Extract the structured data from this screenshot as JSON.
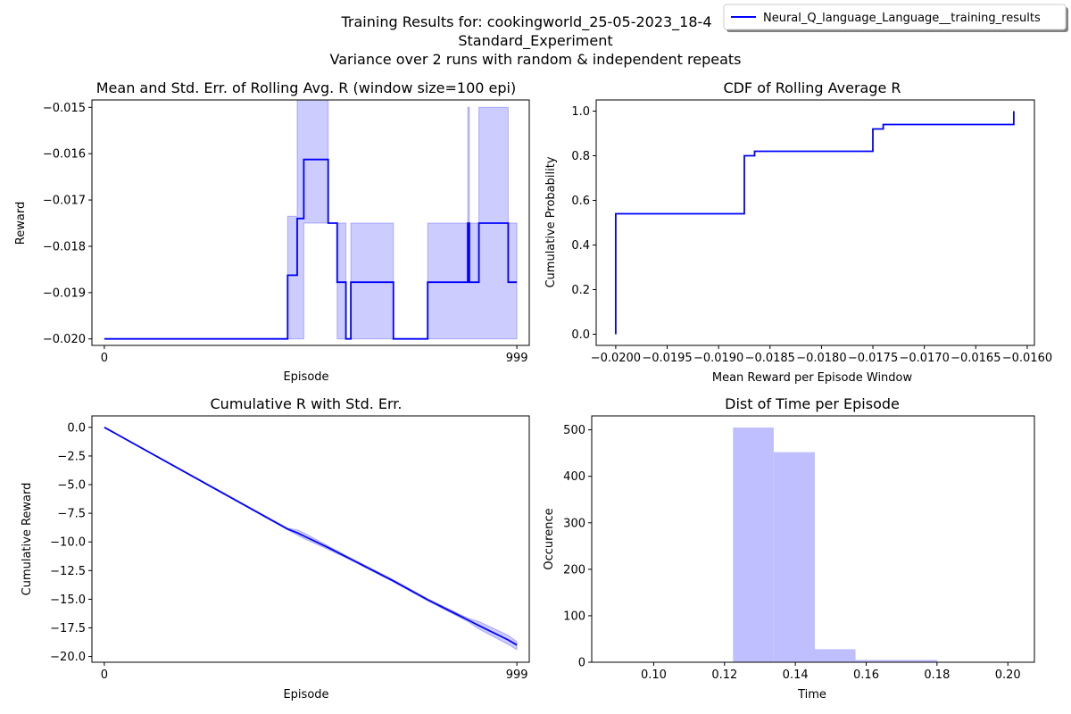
{
  "figure": {
    "title_lines": [
      "Training Results for: cookingworld_25-05-2023_18-4",
      "Standard_Experiment",
      "Variance over 2 runs with random & independent repeats"
    ],
    "legend": {
      "label": "Neural_Q_language_Language__training_results",
      "color": "#0000ff",
      "placement": "top-right"
    }
  },
  "colors": {
    "line": "#0000ff",
    "band": "#0000ff",
    "hist": "#0000ff"
  },
  "chart_data": [
    {
      "type": "line",
      "title": "Mean and Std. Err. of Rolling Avg. R (window size=100 epi)",
      "xlabel": "Episode",
      "ylabel": "Reward",
      "xlim": [
        -30,
        1029
      ],
      "ylim": [
        -0.02014,
        -0.01484
      ],
      "xticks": [
        0,
        999
      ],
      "xtick_labels": [
        "0",
        "999"
      ],
      "yticks": [
        -0.02,
        -0.019,
        -0.018,
        -0.017,
        -0.016,
        -0.015
      ],
      "ytick_labels": [
        "−0.020",
        "−0.019",
        "−0.018",
        "−0.017",
        "−0.016",
        "−0.015"
      ],
      "series": [
        {
          "name": "Neural_Q_language_Language__training_results",
          "x": [
            0,
            444,
            444,
            467,
            467,
            483,
            483,
            542,
            542,
            564,
            564,
            585,
            585,
            597,
            597,
            700,
            700,
            783,
            783,
            880,
            880,
            884,
            884,
            907,
            907,
            978,
            978,
            999
          ],
          "y": [
            -0.02,
            -0.02,
            -0.018625,
            -0.018625,
            -0.0174,
            -0.0174,
            -0.016125,
            -0.016125,
            -0.0175,
            -0.0175,
            -0.018775,
            -0.018775,
            -0.02,
            -0.02,
            -0.018775,
            -0.018775,
            -0.02,
            -0.02,
            -0.018775,
            -0.018775,
            -0.0175,
            -0.0175,
            -0.018775,
            -0.018775,
            -0.0175,
            -0.0175,
            -0.018775,
            -0.018775
          ]
        }
      ],
      "band": {
        "x": [
          0,
          444,
          444,
          467,
          467,
          483,
          483,
          542,
          542,
          564,
          564,
          585,
          585,
          597,
          597,
          700,
          700,
          783,
          783,
          880,
          880,
          884,
          884,
          907,
          907,
          978,
          978,
          999
        ],
        "upper": [
          -0.02,
          -0.02,
          -0.01735,
          -0.01735,
          -0.01483,
          -0.01483,
          -0.01483,
          -0.01483,
          -0.0175,
          -0.0175,
          -0.0175,
          -0.0175,
          -0.02,
          -0.02,
          -0.0175,
          -0.0175,
          -0.02,
          -0.02,
          -0.0175,
          -0.0175,
          -0.015,
          -0.015,
          -0.0175,
          -0.0175,
          -0.015,
          -0.015,
          -0.0175,
          -0.0175
        ],
        "lower": [
          -0.02,
          -0.02,
          -0.02,
          -0.02,
          -0.02,
          -0.02,
          -0.0175,
          -0.0175,
          -0.0175,
          -0.0175,
          -0.02,
          -0.02,
          -0.02,
          -0.02,
          -0.02,
          -0.02,
          -0.02,
          -0.02,
          -0.02,
          -0.02,
          -0.02,
          -0.02,
          -0.02,
          -0.02,
          -0.02,
          -0.02,
          -0.02,
          -0.02
        ]
      },
      "grid": false
    },
    {
      "type": "line",
      "title": "CDF of Rolling Average R",
      "xlabel": "Mean Reward per Episode Window",
      "ylabel": "Cumulative Probability",
      "xlim": [
        -0.02019,
        -0.01593
      ],
      "ylim": [
        -0.05,
        1.05
      ],
      "xticks": [
        -0.02,
        -0.0195,
        -0.019,
        -0.0185,
        -0.018,
        -0.0175,
        -0.017,
        -0.0165,
        -0.016
      ],
      "xtick_labels": [
        "−0.0200",
        "−0.0195",
        "−0.0190",
        "−0.0185",
        "−0.0180",
        "−0.0175",
        "−0.0170",
        "−0.0165",
        "−0.0160"
      ],
      "yticks": [
        0.0,
        0.2,
        0.4,
        0.6,
        0.8,
        1.0
      ],
      "ytick_labels": [
        "0.0",
        "0.2",
        "0.4",
        "0.6",
        "0.8",
        "1.0"
      ],
      "series": [
        {
          "name": "Neural_Q_language_Language__training_results",
          "x": [
            -0.02,
            -0.02,
            -0.01875,
            -0.01875,
            -0.01865,
            -0.01865,
            -0.0175,
            -0.0175,
            -0.0174,
            -0.0174,
            -0.01613,
            -0.01613
          ],
          "y": [
            0.0,
            0.54,
            0.54,
            0.8,
            0.8,
            0.82,
            0.82,
            0.92,
            0.92,
            0.94,
            0.94,
            1.0
          ]
        }
      ],
      "grid": false
    },
    {
      "type": "line",
      "title": "Cumulative R with Std. Err.",
      "xlabel": "Episode",
      "ylabel": "Cumulative Reward",
      "xlim": [
        -30,
        1029
      ],
      "ylim": [
        -20.5,
        1.0
      ],
      "xticks": [
        0,
        999
      ],
      "xtick_labels": [
        "0",
        "999"
      ],
      "yticks": [
        0.0,
        -2.5,
        -5.0,
        -7.5,
        -10.0,
        -12.5,
        -15.0,
        -17.5,
        -20.0
      ],
      "ytick_labels": [
        "0.0",
        "−2.5",
        "−5.0",
        "−7.5",
        "−10.0",
        "−12.5",
        "−15.0",
        "−17.5",
        "−20.0"
      ],
      "series": [
        {
          "name": "Neural_Q_language_Language__training_results",
          "x": [
            0,
            444,
            467,
            483,
            542,
            597,
            700,
            783,
            880,
            907,
            978,
            999
          ],
          "y": [
            0.0,
            -8.88,
            -9.2,
            -9.48,
            -10.5,
            -11.5,
            -13.4,
            -15.05,
            -16.8,
            -17.3,
            -18.55,
            -19.0
          ]
        }
      ],
      "band": {
        "x": [
          0,
          444,
          467,
          483,
          542,
          597,
          700,
          783,
          880,
          907,
          978,
          999
        ],
        "upper": [
          0.0,
          -8.8,
          -8.95,
          -9.2,
          -10.35,
          -11.4,
          -13.3,
          -14.95,
          -16.65,
          -16.95,
          -18.15,
          -18.7
        ],
        "lower": [
          0.0,
          -8.95,
          -9.4,
          -9.7,
          -10.65,
          -11.6,
          -13.5,
          -15.15,
          -16.95,
          -17.6,
          -18.95,
          -19.4
        ]
      },
      "grid": false
    },
    {
      "type": "bar",
      "title": "Dist of Time per Episode",
      "xlabel": "Time",
      "ylabel": "Occurence",
      "xlim": [
        0.0825,
        0.2075
      ],
      "ylim": [
        0,
        530
      ],
      "xticks": [
        0.1,
        0.12,
        0.14,
        0.16,
        0.18,
        0.2
      ],
      "xtick_labels": [
        "0.10",
        "0.12",
        "0.14",
        "0.16",
        "0.18",
        "0.20"
      ],
      "yticks": [
        0,
        100,
        200,
        300,
        400,
        500
      ],
      "ytick_labels": [
        "0",
        "100",
        "200",
        "300",
        "400",
        "500"
      ],
      "bin_edges": [
        0.0878,
        0.0993,
        0.1108,
        0.1224,
        0.1339,
        0.1455,
        0.157,
        0.1686,
        0.1801,
        0.1916,
        0.2032
      ],
      "values": [
        1,
        0,
        0,
        505,
        452,
        28,
        5,
        5,
        1,
        1
      ],
      "grid": false
    }
  ]
}
